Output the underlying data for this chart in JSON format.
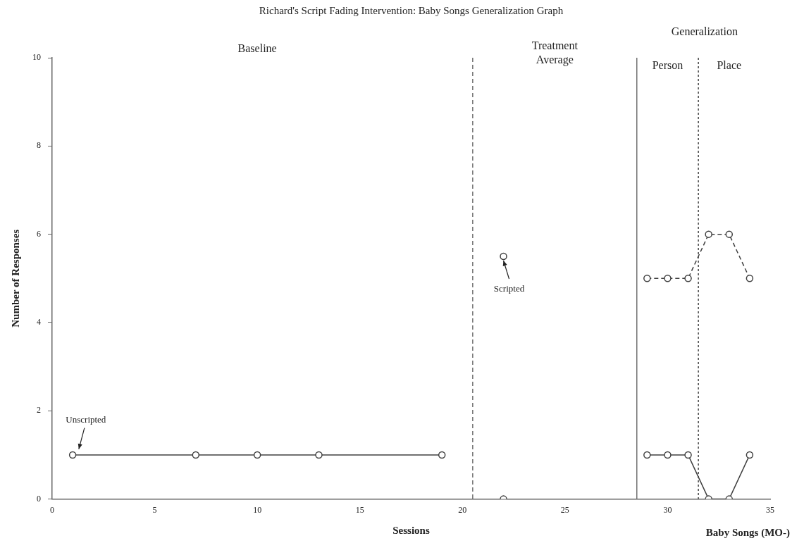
{
  "chart_data": {
    "type": "line",
    "title": "Richard's Script Fading Intervention: Baby Songs Generalization Graph",
    "xlabel": "Sessions",
    "ylabel": "Number of Responses",
    "xlim": [
      0,
      35
    ],
    "xticks": [
      0,
      5,
      10,
      15,
      20,
      25,
      30,
      35
    ],
    "ylim": [
      0,
      10
    ],
    "yticks": [
      0,
      2,
      4,
      6,
      8,
      10
    ],
    "grid": false,
    "legend": false,
    "marker": "circle",
    "series": [
      {
        "color": "#404040",
        "line_style": "solid",
        "x": [
          1,
          7,
          10,
          13,
          19
        ],
        "values": [
          1,
          1,
          1,
          1,
          1
        ]
      },
      {
        "type": "scatter",
        "color": "#404040",
        "x": [
          22
        ],
        "values": [
          5.5
        ]
      },
      {
        "type": "scatter",
        "color": "#404040",
        "x": [
          22
        ],
        "values": [
          0
        ]
      },
      {
        "color": "#404040",
        "line_style": "dashed",
        "x": [
          29,
          30,
          31,
          32,
          33,
          34
        ],
        "values": [
          5,
          5,
          5,
          6,
          6,
          5
        ]
      },
      {
        "color": "#404040",
        "line_style": "solid",
        "x": [
          29,
          30,
          31,
          32,
          33,
          34
        ],
        "values": [
          1,
          1,
          1,
          0,
          0,
          1
        ]
      }
    ],
    "ref_lines": [
      {
        "axis": "x",
        "value": 20.5,
        "color": "#707070",
        "line_style": "dashed"
      },
      {
        "axis": "x",
        "value": 28.5,
        "color": "#707070",
        "line_style": "solid"
      },
      {
        "axis": "x",
        "value": 31.5,
        "color": "#404040",
        "line_style": "dotted"
      }
    ],
    "annotations": [
      {
        "text": "Unscripted",
        "x": 1.3,
        "y": 1.1
      },
      {
        "text": "Scripted",
        "x": 22,
        "y": 5.5
      },
      "Baseline",
      "Treatment Average",
      "Generalization",
      "Person",
      "Place",
      "Baby Songs (MO-)"
    ]
  }
}
